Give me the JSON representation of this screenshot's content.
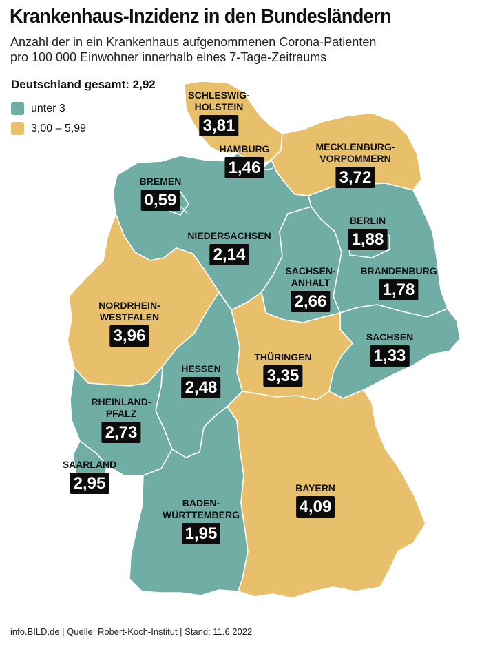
{
  "title": "Krankenhaus-Inzidenz in den Bundesländern",
  "subtitle_line1": "Anzahl der in ein Krankenhaus aufgenommenen Corona-Patienten",
  "subtitle_line2": "pro 100 000 Einwohner innerhalb eines 7-Tage-Zeitraums",
  "total_label": "Deutschland gesamt: 2,92",
  "legend": [
    {
      "label": "unter 3",
      "color": "#6fada5"
    },
    {
      "label": "3,00 – 5,99",
      "color": "#e8c06b"
    }
  ],
  "colors": {
    "teal": "#6fada5",
    "yellow": "#e8c06b"
  },
  "states": {
    "sh": {
      "name": "SCHLESWIG-\nHOLSTEIN",
      "value": "3,81",
      "class": "3,00 – 5,99"
    },
    "hh": {
      "name": "HAMBURG",
      "value": "1,46",
      "class": "unter 3"
    },
    "mv": {
      "name": "MECKLENBURG-\nVORPOMMERN",
      "value": "3,72",
      "class": "3,00 – 5,99"
    },
    "hb": {
      "name": "BREMEN",
      "value": "0,59",
      "class": "unter 3"
    },
    "ni": {
      "name": "NIEDERSACHSEN",
      "value": "2,14",
      "class": "unter 3"
    },
    "be": {
      "name": "BERLIN",
      "value": "1,88",
      "class": "unter 3"
    },
    "bb": {
      "name": "BRANDENBURG",
      "value": "1,78",
      "class": "unter 3"
    },
    "st": {
      "name": "SACHSEN-\nANHALT",
      "value": "2,66",
      "class": "unter 3"
    },
    "nw": {
      "name": "NORDRHEIN-\nWESTFALEN",
      "value": "3,96",
      "class": "3,00 – 5,99"
    },
    "sn": {
      "name": "SACHSEN",
      "value": "1,33",
      "class": "unter 3"
    },
    "th": {
      "name": "THÜRINGEN",
      "value": "3,35",
      "class": "3,00 – 5,99"
    },
    "he": {
      "name": "HESSEN",
      "value": "2,48",
      "class": "unter 3"
    },
    "rp": {
      "name": "RHEINLAND-\nPFALZ",
      "value": "2,73",
      "class": "unter 3"
    },
    "sl": {
      "name": "SAARLAND",
      "value": "2,95",
      "class": "unter 3"
    },
    "by": {
      "name": "BAYERN",
      "value": "4,09",
      "class": "3,00 – 5,99"
    },
    "bw": {
      "name": "BADEN-\nWÜRTTEMBERG",
      "value": "1,95",
      "class": "unter 3"
    }
  },
  "footer": "info.BILD.de | Quelle: Robert-Koch-Institut | Stand: 11.6.2022"
}
